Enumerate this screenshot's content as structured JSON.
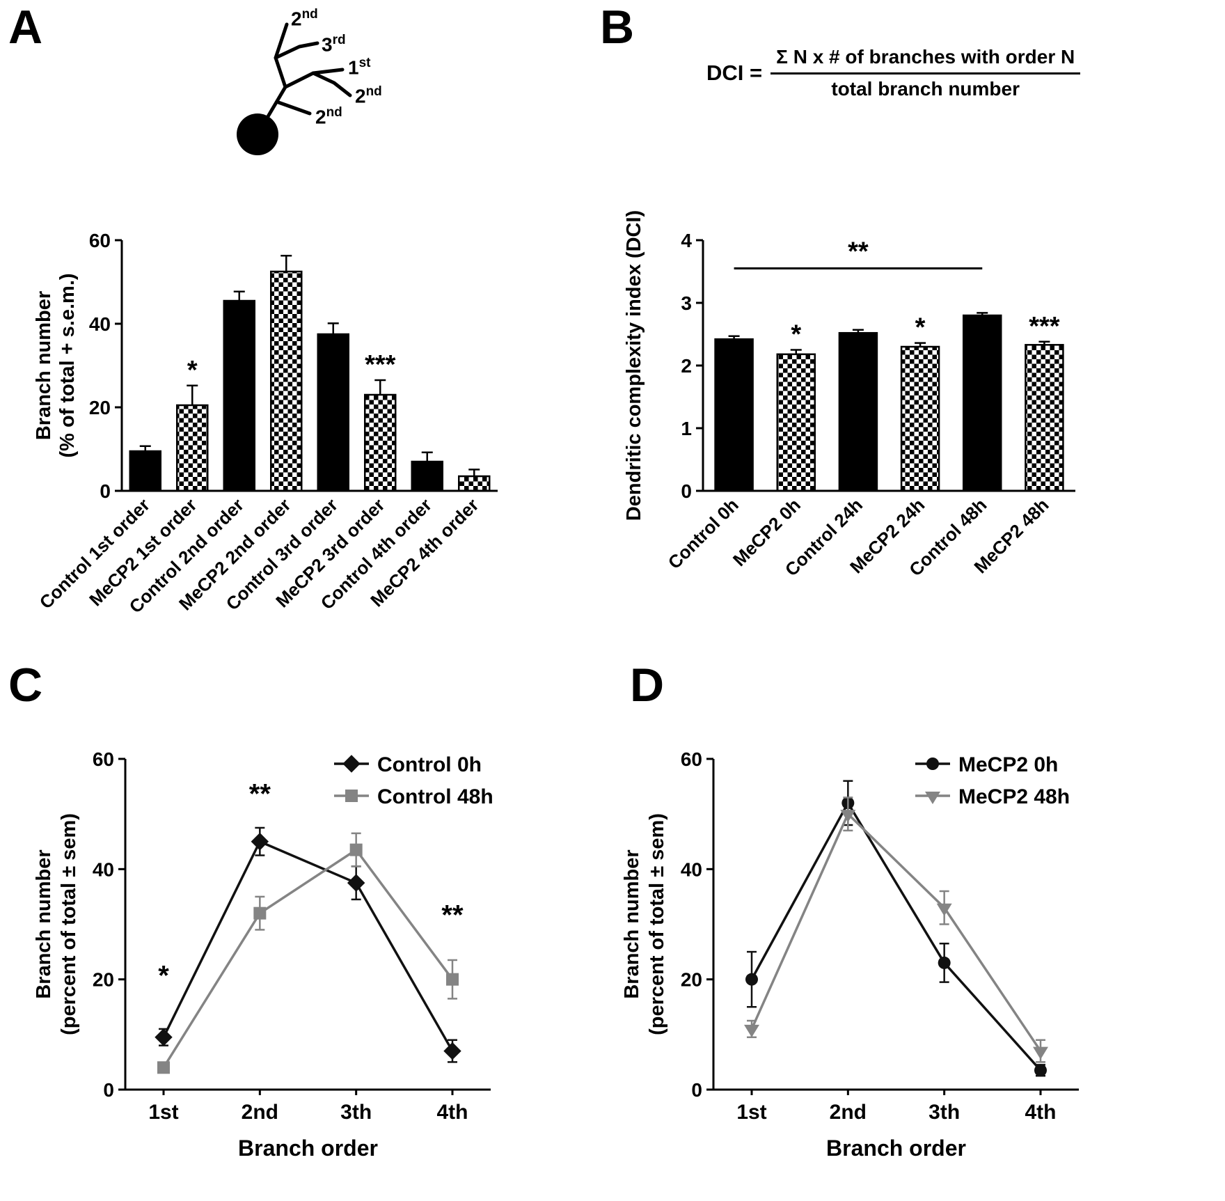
{
  "panels": {
    "a": {
      "letter": "A",
      "neuron_labels": [
        {
          "base": "2",
          "sup": "nd"
        },
        {
          "base": "3",
          "sup": "rd"
        },
        {
          "base": "1",
          "sup": "st"
        },
        {
          "base": "2",
          "sup": "nd"
        },
        {
          "base": "2",
          "sup": "nd"
        }
      ]
    },
    "b": {
      "letter": "B",
      "formula": {
        "lhs": "DCI =",
        "numerator": "Σ N x # of branches with order N",
        "denominator": "total branch number"
      }
    },
    "c": {
      "letter": "C"
    },
    "d": {
      "letter": "D"
    }
  },
  "chart_data": [
    {
      "id": "panel-a-bars",
      "type": "bar",
      "ylabel_lines": [
        "Branch number",
        "(% of total + s.e.m.)"
      ],
      "ylim": [
        0,
        60
      ],
      "yticks": [
        0,
        20,
        40,
        60
      ],
      "categories": [
        "Control 1st order",
        "MeCP2 1st order",
        "Control 2nd order",
        "MeCP2 2nd order",
        "Control 3rd order",
        "MeCP2 3rd order",
        "Control 4th order",
        "MeCP2 4th order"
      ],
      "values": [
        9.5,
        20.5,
        45.5,
        52.5,
        37.5,
        23,
        7,
        3.5
      ],
      "errors": [
        1.2,
        4.7,
        2.2,
        3.8,
        2.6,
        3.5,
        2.2,
        1.6
      ],
      "styles": [
        "solid",
        "checker",
        "solid",
        "checker",
        "solid",
        "checker",
        "solid",
        "checker"
      ],
      "sig": [
        "",
        "*",
        "",
        "",
        "",
        "***",
        "",
        ""
      ]
    },
    {
      "id": "panel-b-bars",
      "type": "bar",
      "ylabel_lines": [
        "Dendritic complexity index (DCI)"
      ],
      "ylim": [
        0,
        4
      ],
      "yticks": [
        0,
        1,
        2,
        3,
        4
      ],
      "categories": [
        "Control 0h",
        "MeCP2 0h",
        "Control 24h",
        "MeCP2 24h",
        "Control 48h",
        "MeCP2 48h"
      ],
      "values": [
        2.42,
        2.18,
        2.52,
        2.3,
        2.8,
        2.33
      ],
      "errors": [
        0.05,
        0.07,
        0.05,
        0.06,
        0.04,
        0.05
      ],
      "styles": [
        "solid",
        "checker",
        "solid",
        "checker",
        "solid",
        "checker"
      ],
      "sig": [
        "",
        "*",
        "",
        "*",
        "",
        "***"
      ],
      "bracket": {
        "from": 0,
        "to": 4,
        "y": 3.55,
        "label": "**"
      }
    },
    {
      "id": "panel-c-lines",
      "type": "line",
      "xlabel": "Branch order",
      "ylabel_lines": [
        "Branch number",
        "(percent of total ± sem)"
      ],
      "ylim": [
        0,
        60
      ],
      "yticks": [
        0,
        20,
        40,
        60
      ],
      "categories": [
        "1st",
        "2nd",
        "3th",
        "4th"
      ],
      "series": [
        {
          "name": "Control 0h",
          "color": "#111111",
          "marker": "diamond",
          "values": [
            9.5,
            45,
            37.5,
            7
          ],
          "errors": [
            1.5,
            2.5,
            3,
            2
          ]
        },
        {
          "name": "Control 48h",
          "color": "#848484",
          "marker": "square",
          "values": [
            4,
            32,
            43.5,
            20
          ],
          "errors": [
            0.8,
            3,
            3,
            3.5
          ]
        }
      ],
      "annotations": [
        {
          "xi": 0,
          "y": 19,
          "label": "*"
        },
        {
          "xi": 1,
          "y": 52,
          "label": "**"
        },
        {
          "xi": 3,
          "y": 30,
          "label": "**"
        }
      ]
    },
    {
      "id": "panel-d-lines",
      "type": "line",
      "xlabel": "Branch order",
      "ylabel_lines": [
        "Branch number",
        "(percent of total ± sem)"
      ],
      "ylim": [
        0,
        60
      ],
      "yticks": [
        0,
        20,
        40,
        60
      ],
      "categories": [
        "1st",
        "2nd",
        "3th",
        "4th"
      ],
      "series": [
        {
          "name": "MeCP2 0h",
          "color": "#111111",
          "marker": "circle",
          "values": [
            20,
            52,
            23,
            3.5
          ],
          "errors": [
            5,
            4,
            3.5,
            1
          ]
        },
        {
          "name": "MeCP2 48h",
          "color": "#848484",
          "marker": "triangle-down",
          "values": [
            11,
            50,
            33,
            7
          ],
          "errors": [
            1.5,
            3,
            3,
            2
          ]
        }
      ],
      "annotations": []
    }
  ]
}
